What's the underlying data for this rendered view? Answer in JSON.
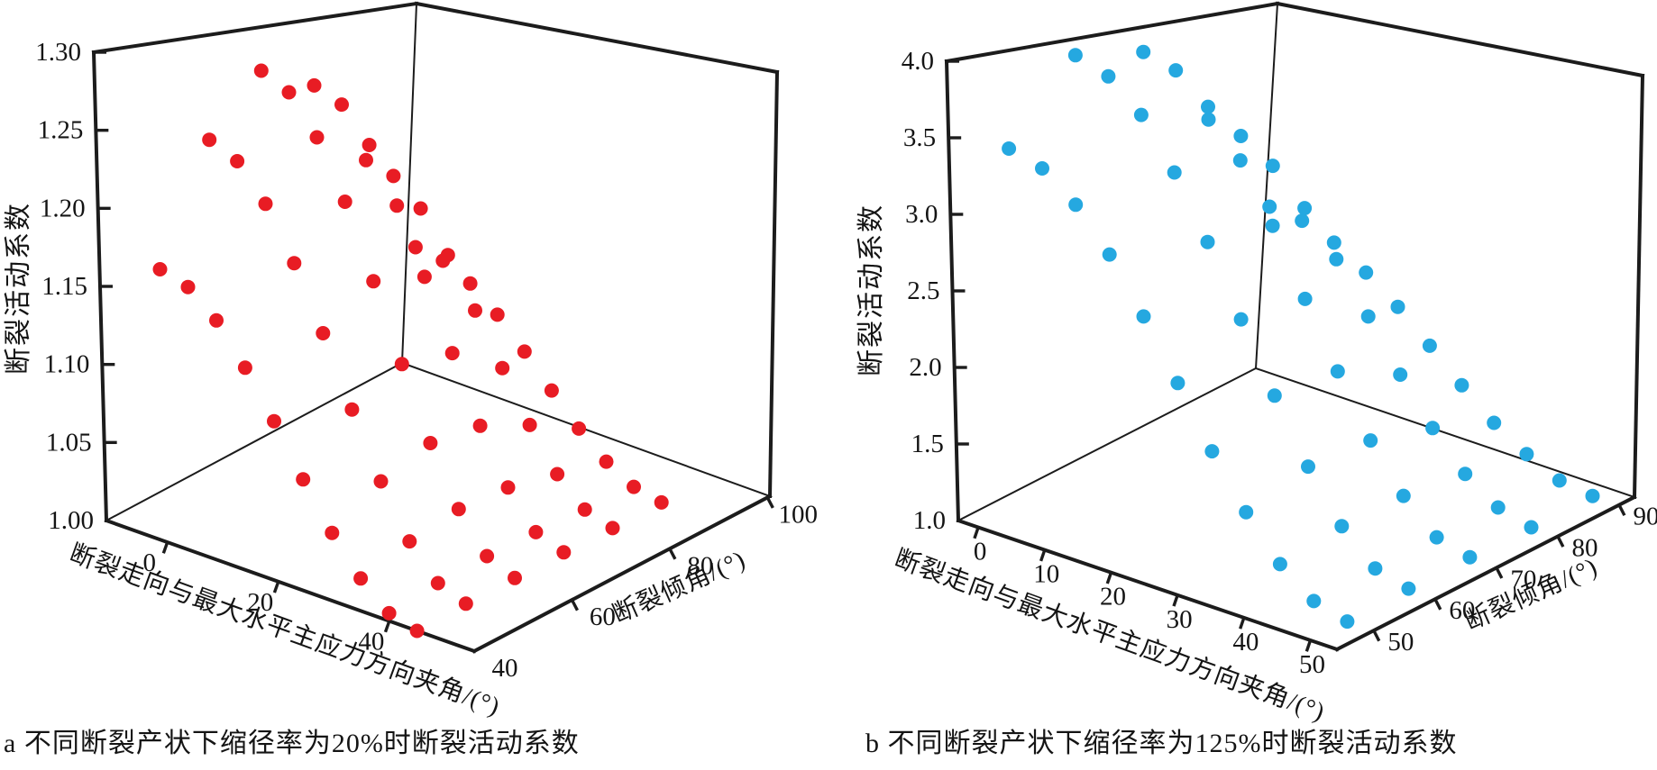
{
  "figure": {
    "background": "#ffffff",
    "frame_color": "#1c1c1c"
  },
  "chart_data": [
    {
      "type": "scatter",
      "subtype": "scatter3d",
      "title": "a 不同断裂产状下缩径率为20%时断裂活动系数",
      "xlabel": "断裂走向与最大水平主应力方向夹角/(°)",
      "ylabel": "断裂倾角/(°)",
      "zlabel": "断裂活动系数",
      "marker_color": "#e81c24",
      "xlim": [
        -11,
        55.3
      ],
      "ylim": [
        40,
        100.5
      ],
      "zlim": [
        1.0,
        1.3
      ],
      "xticks": [
        0,
        20,
        40
      ],
      "yticks": [
        40,
        60,
        80,
        100
      ],
      "zticks": [
        "1.00",
        "1.05",
        "1.10",
        "1.15",
        "1.20",
        "1.25",
        "1.30"
      ],
      "grid": false,
      "legend": "none",
      "points_xyz": [
        [
          0,
          40,
          1.175
        ],
        [
          0,
          50,
          1.25
        ],
        [
          0,
          60,
          1.289
        ],
        [
          0,
          70,
          1.271
        ],
        [
          0,
          80,
          1.207
        ],
        [
          0,
          90,
          1.128
        ],
        [
          5,
          40,
          1.17
        ],
        [
          5,
          50,
          1.242
        ],
        [
          5,
          60,
          1.28
        ],
        [
          5,
          70,
          1.263
        ],
        [
          5,
          80,
          1.201
        ],
        [
          5,
          90,
          1.124
        ],
        [
          10,
          40,
          1.155
        ],
        [
          10,
          50,
          1.22
        ],
        [
          10,
          60,
          1.255
        ],
        [
          10,
          70,
          1.24
        ],
        [
          10,
          80,
          1.183
        ],
        [
          10,
          90,
          1.113
        ],
        [
          15,
          40,
          1.131
        ],
        [
          15,
          50,
          1.187
        ],
        [
          15,
          60,
          1.217
        ],
        [
          15,
          70,
          1.203
        ],
        [
          15,
          80,
          1.155
        ],
        [
          15,
          90,
          1.096
        ],
        [
          20,
          40,
          1.103
        ],
        [
          20,
          50,
          1.147
        ],
        [
          20,
          60,
          1.169
        ],
        [
          20,
          70,
          1.159
        ],
        [
          20,
          80,
          1.121
        ],
        [
          20,
          90,
          1.075
        ],
        [
          25,
          40,
          1.072
        ],
        [
          25,
          50,
          1.103
        ],
        [
          25,
          60,
          1.119
        ],
        [
          25,
          70,
          1.112
        ],
        [
          25,
          80,
          1.086
        ],
        [
          25,
          90,
          1.053
        ],
        [
          30,
          40,
          1.044
        ],
        [
          30,
          50,
          1.062
        ],
        [
          30,
          60,
          1.072
        ],
        [
          30,
          70,
          1.068
        ],
        [
          30,
          80,
          1.052
        ],
        [
          30,
          90,
          1.032
        ],
        [
          35,
          40,
          1.021
        ],
        [
          35,
          50,
          1.029
        ],
        [
          35,
          60,
          1.034
        ],
        [
          35,
          70,
          1.032
        ],
        [
          35,
          80,
          1.024
        ],
        [
          35,
          90,
          1.015
        ],
        [
          40,
          40,
          1.005
        ],
        [
          40,
          50,
          1.008
        ],
        [
          40,
          60,
          1.009
        ],
        [
          40,
          70,
          1.008
        ],
        [
          40,
          80,
          1.006
        ],
        [
          40,
          90,
          1.004
        ],
        [
          45,
          40,
          1.0
        ],
        [
          45,
          50,
          1.001
        ],
        [
          45,
          60,
          1.001
        ],
        [
          45,
          70,
          1.001
        ],
        [
          45,
          80,
          1.0
        ],
        [
          45,
          90,
          1.0
        ]
      ]
    },
    {
      "type": "scatter",
      "subtype": "scatter3d",
      "title": "b 不同断裂产状下缩径率为125%时断裂活动系数",
      "xlabel": "断裂走向与最大水平主应力方向夹角/(°)",
      "ylabel": "断裂倾角/(°)",
      "zlabel": "断裂活动系数",
      "marker_color": "#25a8e0",
      "xlim": [
        -3,
        54
      ],
      "ylim": [
        44,
        92.5
      ],
      "zlim": [
        1.0,
        4.0
      ],
      "xticks": [
        0,
        10,
        20,
        30,
        40,
        50
      ],
      "yticks": [
        50,
        60,
        70,
        80,
        90
      ],
      "zticks": [
        "1.0",
        "1.5",
        "2.0",
        "2.5",
        "3.0",
        "3.5",
        "4.0"
      ],
      "grid": false,
      "legend": "none",
      "points_xyz": [
        [
          0,
          50,
          3.41
        ],
        [
          0,
          60,
          3.95
        ],
        [
          0,
          70,
          3.88
        ],
        [
          0,
          80,
          3.26
        ],
        [
          0,
          90,
          2.42
        ],
        [
          5,
          50,
          3.35
        ],
        [
          5,
          60,
          3.87
        ],
        [
          5,
          70,
          3.81
        ],
        [
          5,
          80,
          3.2
        ],
        [
          5,
          90,
          2.38
        ],
        [
          10,
          50,
          3.18
        ],
        [
          10,
          60,
          3.67
        ],
        [
          10,
          70,
          3.61
        ],
        [
          10,
          80,
          3.04
        ],
        [
          10,
          90,
          2.28
        ],
        [
          15,
          50,
          2.92
        ],
        [
          15,
          60,
          3.34
        ],
        [
          15,
          70,
          3.29
        ],
        [
          15,
          80,
          2.79
        ],
        [
          15,
          90,
          2.12
        ],
        [
          20,
          50,
          2.58
        ],
        [
          20,
          60,
          2.93
        ],
        [
          20,
          70,
          2.89
        ],
        [
          20,
          80,
          2.48
        ],
        [
          20,
          90,
          1.93
        ],
        [
          25,
          50,
          2.21
        ],
        [
          25,
          60,
          2.47
        ],
        [
          25,
          70,
          2.44
        ],
        [
          25,
          80,
          2.13
        ],
        [
          25,
          90,
          1.71
        ],
        [
          30,
          50,
          1.83
        ],
        [
          30,
          60,
          2.02
        ],
        [
          30,
          70,
          2.0
        ],
        [
          30,
          80,
          1.78
        ],
        [
          30,
          90,
          1.49
        ],
        [
          35,
          50,
          1.5
        ],
        [
          35,
          60,
          1.61
        ],
        [
          35,
          70,
          1.59
        ],
        [
          35,
          80,
          1.47
        ],
        [
          35,
          90,
          1.29
        ],
        [
          40,
          50,
          1.23
        ],
        [
          40,
          60,
          1.28
        ],
        [
          40,
          70,
          1.28
        ],
        [
          40,
          80,
          1.22
        ],
        [
          40,
          90,
          1.14
        ],
        [
          45,
          50,
          1.06
        ],
        [
          45,
          60,
          1.07
        ],
        [
          45,
          70,
          1.07
        ],
        [
          45,
          80,
          1.06
        ],
        [
          45,
          90,
          1.03
        ],
        [
          50,
          50,
          1.0
        ],
        [
          50,
          60,
          1.01
        ],
        [
          50,
          70,
          1.01
        ],
        [
          50,
          80,
          1.0
        ],
        [
          50,
          90,
          1.0
        ]
      ]
    }
  ]
}
